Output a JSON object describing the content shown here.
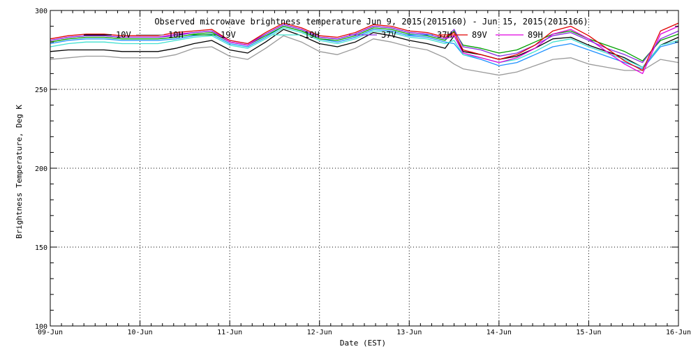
{
  "chart_data": {
    "type": "line",
    "title": "Observed microwave brightness temperature Jun  9, 2015(2015160) - Jun 15, 2015(2015166)",
    "xlabel": "Date (EST)",
    "ylabel": "Brightness Temperature, Deg K",
    "xlim": [
      0,
      7
    ],
    "ylim": [
      100,
      300
    ],
    "yticks": [
      100,
      150,
      200,
      250,
      300
    ],
    "xtick_labels": [
      "09-Jun",
      "10-Jun",
      "11-Jun",
      "12-Jun",
      "13-Jun",
      "14-Jun",
      "15-Jun",
      "16-Jun"
    ],
    "grid": true,
    "legend_position": "top",
    "x": [
      0,
      0.2,
      0.4,
      0.6,
      0.8,
      1.0,
      1.2,
      1.4,
      1.6,
      1.8,
      2.0,
      2.2,
      2.4,
      2.6,
      2.8,
      3.0,
      3.2,
      3.4,
      3.6,
      3.8,
      4.0,
      4.2,
      4.4,
      4.5,
      4.6,
      4.8,
      5.0,
      5.2,
      5.4,
      5.6,
      5.8,
      6.0,
      6.2,
      6.4,
      6.6,
      6.8,
      7.0
    ],
    "series": [
      {
        "name": "10V",
        "color": "#000000",
        "values": [
          274,
          275,
          275,
          275,
          274,
          274,
          274,
          276,
          279,
          281,
          275,
          273,
          280,
          288,
          284,
          279,
          277,
          280,
          286,
          284,
          281,
          279,
          276,
          284,
          274,
          272,
          269,
          271,
          276,
          282,
          283,
          278,
          274,
          270,
          264,
          278,
          283
        ]
      },
      {
        "name": "10H",
        "color": "#9a9a9a",
        "values": [
          269,
          270,
          271,
          271,
          270,
          270,
          270,
          272,
          276,
          277,
          271,
          269,
          276,
          284,
          280,
          274,
          272,
          276,
          282,
          280,
          277,
          275,
          270,
          266,
          263,
          261,
          259,
          261,
          265,
          269,
          270,
          266,
          264,
          262,
          262,
          269,
          267
        ]
      },
      {
        "name": "19V",
        "color": "#00a000",
        "values": [
          280,
          282,
          283,
          283,
          282,
          282,
          282,
          283,
          285,
          286,
          280,
          278,
          284,
          290,
          287,
          282,
          281,
          284,
          289,
          288,
          285,
          284,
          281,
          287,
          278,
          276,
          273,
          275,
          280,
          285,
          287,
          282,
          278,
          274,
          268,
          281,
          285
        ]
      },
      {
        "name": "19H",
        "color": "#40e0d0",
        "values": [
          277,
          279,
          280,
          280,
          279,
          279,
          279,
          281,
          283,
          284,
          278,
          276,
          282,
          289,
          286,
          281,
          279,
          282,
          287,
          286,
          283,
          282,
          279,
          281,
          272,
          270,
          267,
          269,
          274,
          280,
          282,
          277,
          273,
          269,
          264,
          278,
          281
        ]
      },
      {
        "name": "37V",
        "color": "#8a2be2",
        "values": [
          281,
          283,
          284,
          284,
          283,
          283,
          283,
          284,
          286,
          287,
          281,
          279,
          285,
          291,
          288,
          283,
          282,
          285,
          290,
          289,
          286,
          285,
          282,
          288,
          277,
          275,
          271,
          273,
          278,
          284,
          286,
          281,
          276,
          272,
          267,
          282,
          287
        ]
      },
      {
        "name": "37H",
        "color": "#1e90ff",
        "values": [
          279,
          281,
          282,
          282,
          281,
          281,
          281,
          282,
          284,
          285,
          279,
          277,
          283,
          290,
          287,
          282,
          280,
          283,
          288,
          287,
          284,
          283,
          280,
          279,
          272,
          269,
          265,
          267,
          272,
          277,
          279,
          275,
          271,
          267,
          263,
          277,
          280
        ]
      },
      {
        "name": "89V",
        "color": "#e00000",
        "values": [
          282,
          284,
          285,
          285,
          284,
          284,
          284,
          286,
          287,
          288,
          281,
          279,
          286,
          292,
          289,
          284,
          283,
          286,
          291,
          290,
          287,
          286,
          283,
          286,
          275,
          272,
          269,
          272,
          278,
          287,
          290,
          284,
          276,
          268,
          262,
          287,
          292
        ]
      },
      {
        "name": "89H",
        "color": "#e000e0",
        "values": [
          281,
          283,
          284,
          284,
          283,
          283,
          283,
          285,
          286,
          287,
          280,
          278,
          285,
          291,
          288,
          283,
          282,
          285,
          290,
          289,
          286,
          285,
          282,
          284,
          273,
          270,
          267,
          270,
          276,
          285,
          288,
          282,
          274,
          266,
          260,
          285,
          290
        ]
      }
    ]
  }
}
